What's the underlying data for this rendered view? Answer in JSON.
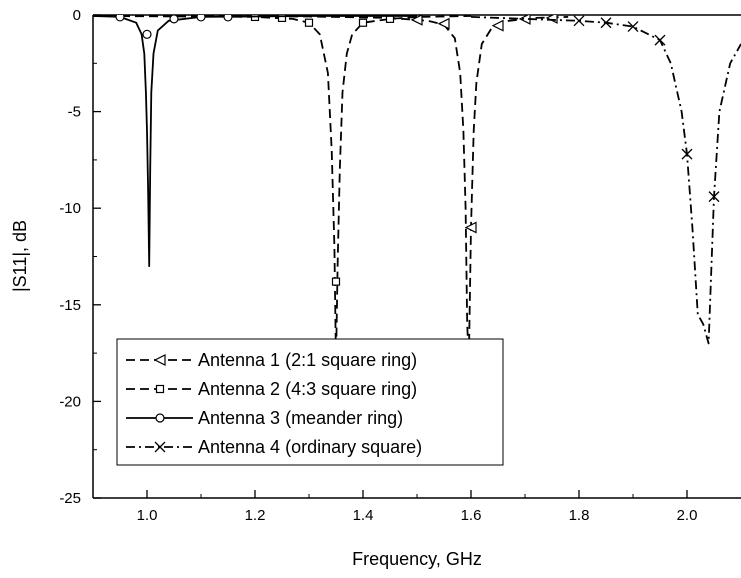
{
  "chart_data": {
    "type": "line",
    "xlabel": "Frequency, GHz",
    "ylabel": "|S11|, dB",
    "xlim": [
      0.9,
      2.1
    ],
    "ylim": [
      -25,
      0
    ],
    "xticks": [
      "1.0",
      "1.2",
      "1.4",
      "1.6",
      "1.8",
      "2.0"
    ],
    "yticks": [
      "0",
      "-5",
      "-10",
      "-15",
      "-20",
      "-25"
    ],
    "grid": false,
    "legend_position": "bottom-left",
    "series": [
      {
        "name": "Antenna 1 (2:1 square ring)",
        "marker": "triangle-left",
        "dash": "dash",
        "x": [
          0.9,
          1.3,
          1.45,
          1.52,
          1.55,
          1.57,
          1.58,
          1.586,
          1.59,
          1.593,
          1.596,
          1.6,
          1.605,
          1.61,
          1.62,
          1.64,
          1.67,
          1.72,
          1.78
        ],
        "y": [
          -0.05,
          -0.08,
          -0.15,
          -0.3,
          -0.5,
          -1.2,
          -3.0,
          -6.0,
          -10.0,
          -16.0,
          -18.0,
          -11.0,
          -6.0,
          -3.5,
          -1.5,
          -0.6,
          -0.3,
          -0.15,
          -0.1
        ],
        "markers_x": [
          1.5,
          1.55,
          1.6,
          1.65,
          1.7,
          1.75
        ],
        "markers_y": [
          -0.25,
          -0.45,
          -11.0,
          -0.55,
          -0.2,
          -0.15
        ]
      },
      {
        "name": "Antenna 2 (4:3 square ring)",
        "marker": "square",
        "dash": "dash",
        "x": [
          0.9,
          1.1,
          1.2,
          1.27,
          1.3,
          1.32,
          1.335,
          1.342,
          1.347,
          1.35,
          1.353,
          1.357,
          1.362,
          1.37,
          1.38,
          1.4,
          1.45,
          1.5,
          1.6
        ],
        "y": [
          -0.05,
          -0.08,
          -0.1,
          -0.2,
          -0.4,
          -1.0,
          -3.0,
          -7.0,
          -12.0,
          -18.0,
          -13.0,
          -8.0,
          -4.0,
          -2.0,
          -1.0,
          -0.4,
          -0.2,
          -0.1,
          -0.05
        ],
        "markers_x": [
          1.2,
          1.25,
          1.3,
          1.35,
          1.4,
          1.45
        ],
        "markers_y": [
          -0.1,
          -0.15,
          -0.4,
          -13.8,
          -0.4,
          -0.2
        ]
      },
      {
        "name": "Antenna 3 (meander ring)",
        "marker": "circle",
        "dash": "solid",
        "x": [
          0.9,
          0.95,
          0.98,
          0.99,
          0.995,
          0.998,
          1.0,
          1.002,
          1.004,
          1.006,
          1.008,
          1.012,
          1.02,
          1.04,
          1.1,
          1.3,
          1.5
        ],
        "y": [
          -0.05,
          -0.1,
          -0.4,
          -1.0,
          -2.0,
          -4.0,
          -6.0,
          -9.0,
          -13.0,
          -8.0,
          -4.0,
          -2.0,
          -0.8,
          -0.3,
          -0.1,
          -0.05,
          -0.05
        ],
        "markers_x": [
          0.95,
          1.0,
          1.05,
          1.1,
          1.15
        ],
        "markers_y": [
          -0.1,
          -1.0,
          -0.2,
          -0.1,
          -0.1
        ]
      },
      {
        "name": "Antenna 4 (ordinary square)",
        "marker": "x",
        "dash": "dashdot",
        "x": [
          1.6,
          1.7,
          1.8,
          1.85,
          1.9,
          1.95,
          1.97,
          1.99,
          2.0,
          2.01,
          2.02,
          2.03,
          2.04,
          2.05,
          2.06,
          2.08,
          2.1
        ],
        "y": [
          -0.1,
          -0.2,
          -0.3,
          -0.4,
          -0.6,
          -1.3,
          -2.5,
          -5.0,
          -7.2,
          -11.0,
          -15.5,
          -16.0,
          -17.0,
          -9.4,
          -5.0,
          -2.5,
          -1.5
        ],
        "markers_x": [
          1.8,
          1.85,
          1.9,
          1.95,
          2.0,
          2.05
        ],
        "markers_y": [
          -0.3,
          -0.4,
          -0.6,
          -1.3,
          -7.2,
          -9.4
        ]
      }
    ]
  }
}
